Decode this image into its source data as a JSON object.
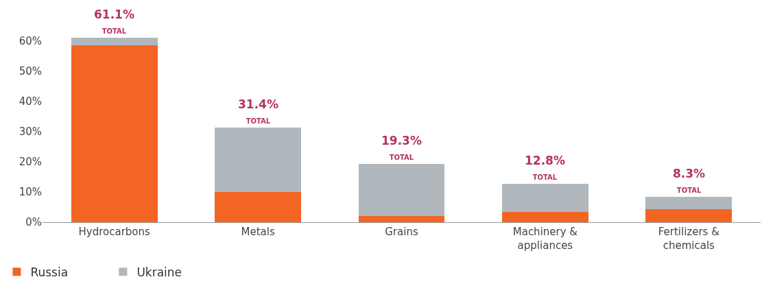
{
  "chart_data": {
    "type": "bar",
    "stacked": true,
    "categories": [
      "Hydrocarbons",
      "Metals",
      "Grains",
      "Machinery &\nappliances",
      "Fertilizers &\nchemicals"
    ],
    "series": [
      {
        "name": "Russia",
        "color": "#f26522",
        "values": [
          58.7,
          10.1,
          2.1,
          3.4,
          4.4
        ]
      },
      {
        "name": "Ukraine",
        "color": "#b0b7bd",
        "values": [
          2.4,
          21.3,
          17.2,
          9.4,
          3.9
        ]
      }
    ],
    "totals": [
      "61.1%\nTOTAL",
      "31.4%\nTOTAL",
      "19.3%\nTOTAL",
      "12.8%\nTOTAL",
      "8.3%\nTOTAL"
    ],
    "ylim": [
      0,
      62
    ],
    "yticks": [
      {
        "value": 0,
        "label": "0%"
      },
      {
        "value": 10,
        "label": "10%"
      },
      {
        "value": 20,
        "label": "20%"
      },
      {
        "value": 30,
        "label": "30%"
      },
      {
        "value": 40,
        "label": "40%"
      },
      {
        "value": 50,
        "label": "50%"
      },
      {
        "value": 60,
        "label": "60%"
      }
    ],
    "grid": false,
    "legend": "bottom left"
  }
}
